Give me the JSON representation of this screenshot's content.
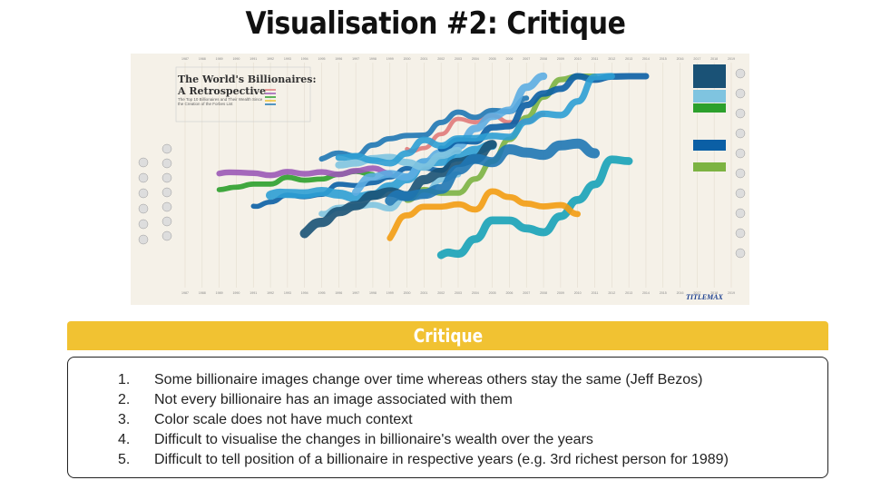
{
  "slide": {
    "title": "Visualisation #2: Critique"
  },
  "infographic": {
    "title_line1": "The World's Billionaires:",
    "title_line2": "A Retrospective",
    "subtitle": "The Top 10 Billionaires and Their Wealth Since the Creation of the Forbes List",
    "brand": "TITLEMAX",
    "years": [
      "1987",
      "1988",
      "1989",
      "1990",
      "1991",
      "1992",
      "1993",
      "1994",
      "1995",
      "1996",
      "1997",
      "1998",
      "1999",
      "2000",
      "2001",
      "2002",
      "2003",
      "2004",
      "2005",
      "2006",
      "2007",
      "2008",
      "2009",
      "2010",
      "2011",
      "2012",
      "2013",
      "2014",
      "2015",
      "2016",
      "2017",
      "2018",
      "2019"
    ],
    "colors": [
      "#1f77b4",
      "#0b5fa5",
      "#7fc4e0",
      "#2e9fd4",
      "#7cb342",
      "#2ca02c",
      "#17a2b8",
      "#e07a7a",
      "#9b59b6",
      "#f39c12",
      "#5dade2",
      "#1a5276"
    ]
  },
  "critique": {
    "heading": "Critique",
    "items": [
      {
        "number": "1.",
        "text": "Some billionaire images change over time whereas others stay the same (Jeff Bezos)"
      },
      {
        "number": "2.",
        "text": "Not every billionaire has an image associated with them"
      },
      {
        "number": "3.",
        "text": "Color scale does not have much context"
      },
      {
        "number": "4.",
        "text": "Difficult to visualise the changes in billionaire's wealth over the years"
      },
      {
        "number": "5.",
        "text": "Difficult to tell position of a billionaire in respective years (e.g. 3rd richest person for 1989)"
      }
    ]
  }
}
